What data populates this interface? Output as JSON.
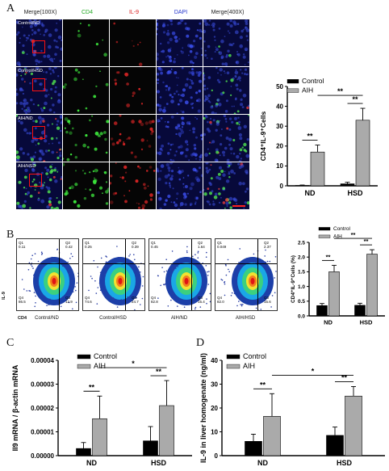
{
  "panels": {
    "a": "A",
    "b": "B",
    "c": "C",
    "d": "D"
  },
  "microscopy": {
    "headers": [
      "Merge(100X)",
      "CD4",
      "IL-9",
      "DAPI",
      "Merge(400X)"
    ],
    "header_colors": [
      "#222222",
      "#22aa22",
      "#dd2222",
      "#2233cc",
      "#222222"
    ],
    "rows": [
      "Control/ND",
      "Control/HSD",
      "AIH/ND",
      "AIH/HSD"
    ]
  },
  "flow": {
    "axis_y": "IL-9",
    "axis_x": "CD4",
    "plots": [
      {
        "label": "Control/ND",
        "q1": "Q1",
        "q1v": "0.11",
        "q2": "Q2",
        "q2v": "0.42",
        "q3": "Q3",
        "q3v": "12.9",
        "q4": "Q4",
        "q4v": "86.5"
      },
      {
        "label": "Control/HSD",
        "q1": "Q1",
        "q1v": "0.25",
        "q2": "Q2",
        "q2v": "0.39",
        "q3": "Q3",
        "q3v": "24.7",
        "q4": "Q4",
        "q4v": "74.6"
      },
      {
        "label": "AIH/ND",
        "q1": "Q1",
        "q1v": "0.45",
        "q2": "Q2",
        "q2v": "1.64",
        "q3": "Q3",
        "q3v": "15.4",
        "q4": "Q4",
        "q4v": "82.8"
      },
      {
        "label": "AIH/HSD",
        "q1": "Q1",
        "q1v": "0.049",
        "q2": "Q2",
        "q2v": "2.37",
        "q3": "Q3",
        "q3v": "15.6",
        "q4": "Q4",
        "q4v": "82.0"
      }
    ]
  },
  "chart_data": [
    {
      "id": "A",
      "type": "bar",
      "categories": [
        "ND",
        "HSD"
      ],
      "series": [
        {
          "name": "Control",
          "values": [
            0.2,
            1.0
          ],
          "errors": [
            0.2,
            0.8
          ],
          "color": "#000000"
        },
        {
          "name": "AIH",
          "values": [
            17,
            33
          ],
          "errors": [
            3.5,
            6
          ],
          "color": "#aaaaaa"
        }
      ],
      "ylabel": "CD4⁺IL-9⁺Cells",
      "ylim": [
        0,
        50
      ],
      "yticks": [
        0,
        10,
        20,
        30,
        40,
        50
      ],
      "sig": [
        "**",
        "**",
        "**"
      ],
      "legend": "top-left"
    },
    {
      "id": "B",
      "type": "bar",
      "categories": [
        "ND",
        "HSD"
      ],
      "series": [
        {
          "name": "Control",
          "values": [
            0.35,
            0.36
          ],
          "errors": [
            0.07,
            0.07
          ],
          "color": "#000000"
        },
        {
          "name": "AIH",
          "values": [
            1.5,
            2.1
          ],
          "errors": [
            0.22,
            0.15
          ],
          "color": "#aaaaaa"
        }
      ],
      "ylabel": "CD4⁺IL-9⁺Cells (%)",
      "ylim": [
        0,
        2.5
      ],
      "yticks": [
        "0.0",
        "0.5",
        "1.0",
        "1.5",
        "2.0",
        "2.5"
      ],
      "sig": [
        "**",
        "**",
        "**"
      ],
      "legend": "top-right"
    },
    {
      "id": "C",
      "type": "bar",
      "categories": [
        "ND",
        "HSD"
      ],
      "series": [
        {
          "name": "Control",
          "values": [
            3e-06,
            6.2e-06
          ],
          "errors": [
            2.5e-06,
            6e-06
          ],
          "color": "#000000"
        },
        {
          "name": "AIH",
          "values": [
            1.55e-05,
            2.1e-05
          ],
          "errors": [
            9.5e-06,
            1.05e-05
          ],
          "color": "#aaaaaa"
        }
      ],
      "ylabel": "Il9 mRNA / β-actin mRNA",
      "ylim": [
        0,
        4e-05
      ],
      "yticks": [
        "0.00000",
        "0.00001",
        "0.00002",
        "0.00003",
        "0.00004"
      ],
      "sig": [
        "**",
        "**",
        "*"
      ],
      "legend": "top-left"
    },
    {
      "id": "D",
      "type": "bar",
      "categories": [
        "ND",
        "HSD"
      ],
      "series": [
        {
          "name": "Control",
          "values": [
            6,
            8.5
          ],
          "errors": [
            3,
            3.5
          ],
          "color": "#000000"
        },
        {
          "name": "AIH",
          "values": [
            16.5,
            25
          ],
          "errors": [
            9.5,
            4
          ],
          "color": "#aaaaaa"
        }
      ],
      "ylabel": "IL-9 in liver homogenate (ng/ml)",
      "ylim": [
        0,
        40
      ],
      "yticks": [
        0,
        10,
        20,
        30,
        40
      ],
      "sig": [
        "**",
        "**",
        "*"
      ],
      "legend": "top-left"
    }
  ]
}
